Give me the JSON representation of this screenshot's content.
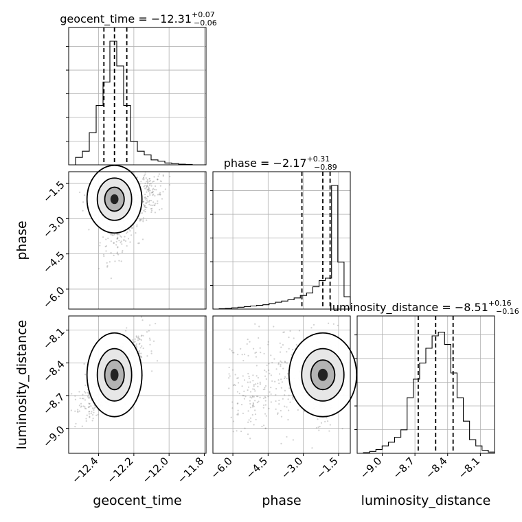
{
  "chart_data": {
    "type": "corner",
    "parameters": [
      "geocent_time",
      "phase",
      "luminosity_distance"
    ],
    "axis_labels": {
      "x": [
        "geocent_time",
        "phase",
        "luminosity_distance"
      ],
      "y": [
        "phase",
        "luminosity_distance"
      ]
    },
    "titles": [
      {
        "prefix": "geocent_time = −12.31",
        "sup": "+0.07",
        "sub": "−0.06"
      },
      {
        "prefix": "phase = −2.17",
        "sup": "+0.31",
        "sub": "−0.89"
      },
      {
        "prefix": "luminosity_distance = −8.51",
        "sup": "+0.16",
        "sub": "−0.16"
      }
    ],
    "ranges": {
      "geocent_time": [
        -12.57,
        -11.79
      ],
      "phase": [
        -6.85,
        -1.0
      ],
      "luminosity_distance": [
        -9.23,
        -7.97
      ]
    },
    "ticks": {
      "geocent_time": {
        "values": [
          -12.4,
          -12.2,
          -12.0,
          -11.8
        ],
        "labels": [
          "−12.4",
          "−12.2",
          "−12.0",
          "−11.8"
        ]
      },
      "phase": {
        "values": [
          -6.0,
          -4.5,
          -3.0,
          -1.5
        ],
        "labels": [
          "−6.0",
          "−4.5",
          "−3.0",
          "−1.5"
        ]
      },
      "luminosity_distance": {
        "values": [
          -9.0,
          -8.7,
          -8.4,
          -8.1
        ],
        "labels": [
          "−9.0",
          "−8.7",
          "−8.4",
          "−8.1"
        ]
      }
    },
    "quantiles": {
      "geocent_time": [
        -12.37,
        -12.31,
        -12.24
      ],
      "phase": [
        -3.06,
        -2.17,
        -1.86
      ],
      "luminosity_distance": [
        -8.67,
        -8.51,
        -8.35
      ]
    },
    "histograms": {
      "geocent_time": [
        0.0,
        0.06,
        0.11,
        0.26,
        0.48,
        0.67,
        1.0,
        0.8,
        0.48,
        0.19,
        0.11,
        0.08,
        0.04,
        0.03,
        0.015,
        0.01,
        0.005,
        0.003,
        0.0,
        0.0
      ],
      "phase": [
        0.0,
        0.003,
        0.005,
        0.01,
        0.015,
        0.02,
        0.025,
        0.03,
        0.035,
        0.045,
        0.055,
        0.065,
        0.075,
        0.09,
        0.11,
        0.13,
        0.18,
        0.23,
        0.25,
        1.0,
        0.38,
        0.1
      ],
      "luminosity_distance": [
        0.0,
        0.005,
        0.015,
        0.03,
        0.06,
        0.09,
        0.13,
        0.19,
        0.45,
        0.6,
        0.73,
        0.85,
        0.95,
        0.98,
        0.88,
        0.65,
        0.45,
        0.26,
        0.11,
        0.06,
        0.025,
        0.01
      ]
    },
    "grid": true,
    "colors": {
      "contour": "#000000",
      "samples": "#7a7a7a",
      "grid": "#b0b0b0",
      "background": "#ffffff"
    }
  }
}
